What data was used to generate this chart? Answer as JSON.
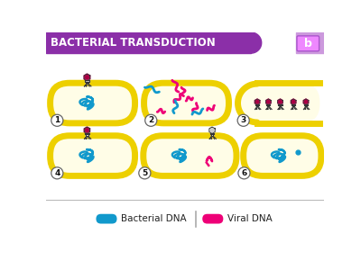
{
  "title": "BACTERIAL TRANSDUCTION",
  "title_bg": "#8B2FA8",
  "title_text_color": "#FFFFFF",
  "bg_color": "#FFFFFF",
  "cell_fill": "#FFFDE7",
  "cell_edge": "#EDD000",
  "cell_edge_width": 5.0,
  "bacterial_dna_color": "#1199CC",
  "viral_dna_color": "#EE0077",
  "legend_bacterial": "Bacterial DNA",
  "legend_viral": "Viral DNA",
  "numbers": [
    "1",
    "2",
    "3",
    "4",
    "5",
    "6"
  ],
  "separator_color": "#BBBBBB",
  "logo_bg": "#CC99DD"
}
